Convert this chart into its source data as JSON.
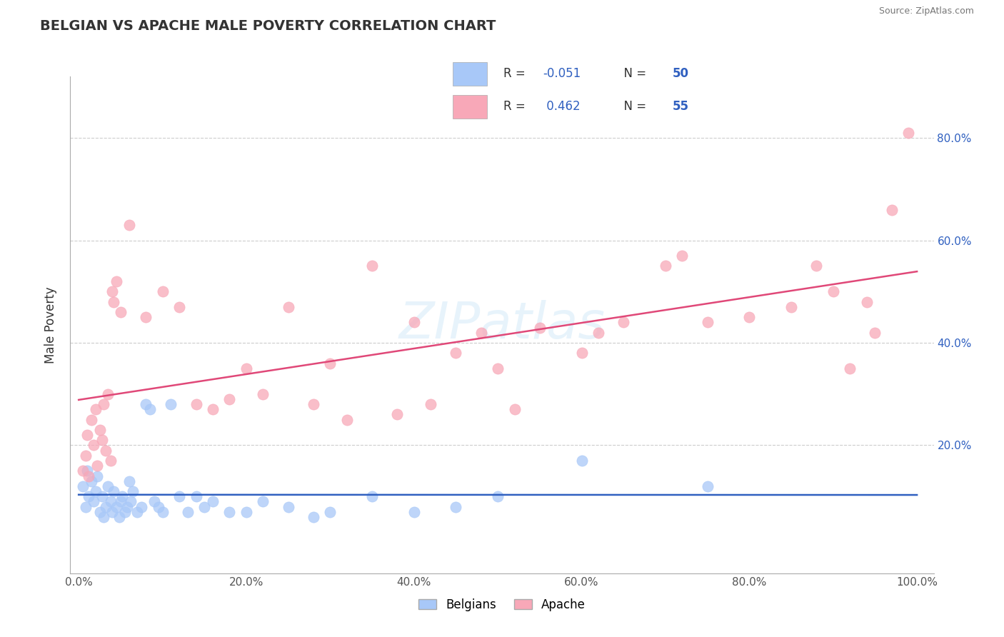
{
  "title": "BELGIAN VS APACHE MALE POVERTY CORRELATION CHART",
  "source": "Source: ZipAtlas.com",
  "xlabel": "",
  "ylabel": "Male Poverty",
  "xlim": [
    0,
    1
  ],
  "ylim": [
    -0.05,
    0.92
  ],
  "xtick_labels": [
    "0.0%",
    "20.0%",
    "40.0%",
    "60.0%",
    "80.0%",
    "100.0%"
  ],
  "ytick_labels": [
    "20.0%",
    "40.0%",
    "60.0%",
    "80.0%"
  ],
  "belgian_R": -0.051,
  "belgian_N": 50,
  "apache_R": 0.462,
  "apache_N": 55,
  "belgian_color": "#a8c8f8",
  "apache_color": "#f8a8b8",
  "belgian_line_color": "#3060c0",
  "apache_line_color": "#e04878",
  "watermark": "ZIPatlas",
  "belgian_x": [
    0.005,
    0.008,
    0.01,
    0.012,
    0.015,
    0.018,
    0.02,
    0.022,
    0.025,
    0.028,
    0.03,
    0.032,
    0.035,
    0.038,
    0.04,
    0.042,
    0.045,
    0.048,
    0.05,
    0.052,
    0.055,
    0.058,
    0.06,
    0.062,
    0.065,
    0.07,
    0.075,
    0.08,
    0.085,
    0.09,
    0.095,
    0.1,
    0.11,
    0.12,
    0.13,
    0.14,
    0.15,
    0.16,
    0.18,
    0.2,
    0.22,
    0.25,
    0.28,
    0.3,
    0.35,
    0.4,
    0.45,
    0.5,
    0.6,
    0.75
  ],
  "belgian_y": [
    0.12,
    0.08,
    0.15,
    0.1,
    0.13,
    0.09,
    0.11,
    0.14,
    0.07,
    0.1,
    0.06,
    0.08,
    0.12,
    0.09,
    0.07,
    0.11,
    0.08,
    0.06,
    0.09,
    0.1,
    0.07,
    0.08,
    0.13,
    0.09,
    0.11,
    0.07,
    0.08,
    0.28,
    0.27,
    0.09,
    0.08,
    0.07,
    0.28,
    0.1,
    0.07,
    0.1,
    0.08,
    0.09,
    0.07,
    0.07,
    0.09,
    0.08,
    0.06,
    0.07,
    0.1,
    0.07,
    0.08,
    0.1,
    0.17,
    0.12
  ],
  "apache_x": [
    0.005,
    0.008,
    0.01,
    0.012,
    0.015,
    0.018,
    0.02,
    0.022,
    0.025,
    0.028,
    0.03,
    0.032,
    0.035,
    0.038,
    0.04,
    0.042,
    0.045,
    0.05,
    0.06,
    0.08,
    0.1,
    0.12,
    0.14,
    0.16,
    0.18,
    0.2,
    0.22,
    0.25,
    0.28,
    0.3,
    0.32,
    0.35,
    0.38,
    0.4,
    0.42,
    0.45,
    0.48,
    0.5,
    0.52,
    0.55,
    0.6,
    0.62,
    0.65,
    0.7,
    0.72,
    0.75,
    0.8,
    0.85,
    0.88,
    0.9,
    0.92,
    0.94,
    0.95,
    0.97,
    0.99
  ],
  "apache_y": [
    0.15,
    0.18,
    0.22,
    0.14,
    0.25,
    0.2,
    0.27,
    0.16,
    0.23,
    0.21,
    0.28,
    0.19,
    0.3,
    0.17,
    0.5,
    0.48,
    0.52,
    0.46,
    0.63,
    0.45,
    0.5,
    0.47,
    0.28,
    0.27,
    0.29,
    0.35,
    0.3,
    0.47,
    0.28,
    0.36,
    0.25,
    0.55,
    0.26,
    0.44,
    0.28,
    0.38,
    0.42,
    0.35,
    0.27,
    0.43,
    0.38,
    0.42,
    0.44,
    0.55,
    0.57,
    0.44,
    0.45,
    0.47,
    0.55,
    0.5,
    0.35,
    0.48,
    0.42,
    0.66,
    0.81
  ]
}
